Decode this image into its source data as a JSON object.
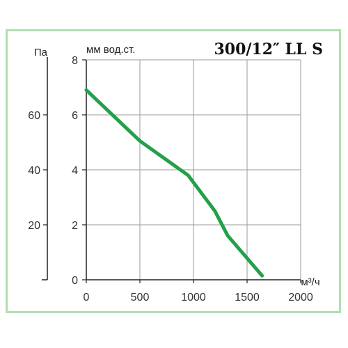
{
  "chart_data": {
    "type": "line",
    "title": "300/12″ LL S",
    "xlabel": "м³/ч",
    "ylabel": "мм вод.ст.",
    "y2label": "Па",
    "xlim": [
      0,
      2000
    ],
    "ylim": [
      0,
      8
    ],
    "y2lim": [
      0,
      80
    ],
    "x_ticks": [
      "0",
      "500",
      "1000",
      "1500",
      "2000"
    ],
    "y_ticks": [
      "0",
      "2",
      "4",
      "6",
      "8"
    ],
    "y2_ticks": [
      "20",
      "40",
      "60"
    ],
    "grid": true,
    "series": [
      {
        "color": "#22a04a",
        "points": [
          {
            "x": 0,
            "y": 6.9
          },
          {
            "x": 500,
            "y": 5.05
          },
          {
            "x": 950,
            "y": 3.8
          },
          {
            "x": 1200,
            "y": 2.5
          },
          {
            "x": 1320,
            "y": 1.6
          },
          {
            "x": 1640,
            "y": 0.15
          }
        ]
      }
    ]
  }
}
